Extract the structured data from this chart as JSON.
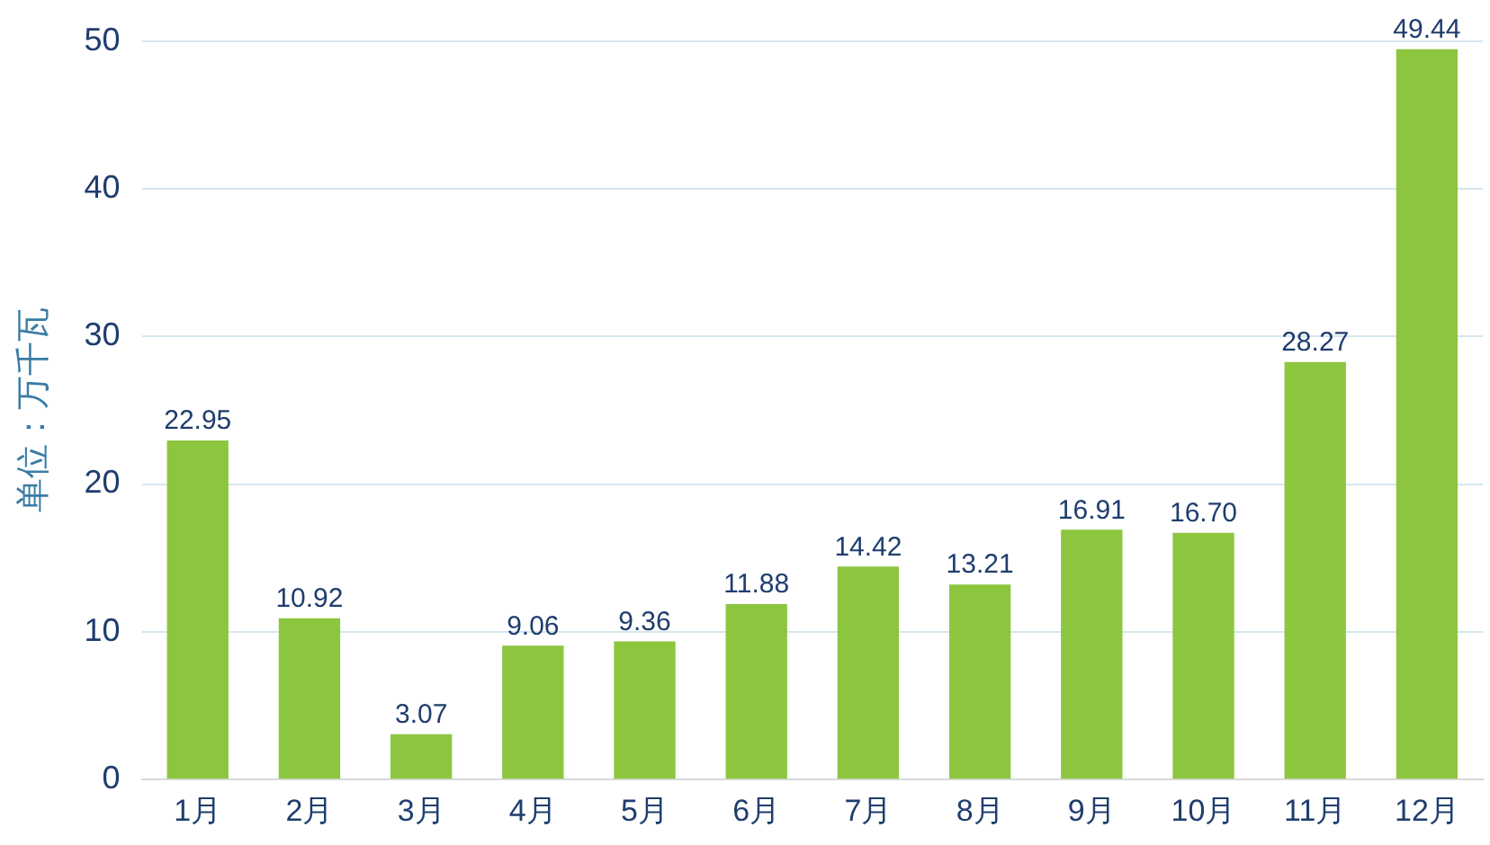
{
  "chart_data": {
    "type": "bar",
    "ylabel": "单位：万千瓦",
    "categories": [
      "1月",
      "2月",
      "3月",
      "4月",
      "5月",
      "6月",
      "7月",
      "8月",
      "9月",
      "10月",
      "11月",
      "12月"
    ],
    "values": [
      22.95,
      10.92,
      3.07,
      9.06,
      9.36,
      11.88,
      14.42,
      13.21,
      16.91,
      16.7,
      28.27,
      49.44
    ],
    "value_labels": [
      "22.95",
      "10.92",
      "3.07",
      "9.06",
      "9.36",
      "11.88",
      "14.42",
      "13.21",
      "16.91",
      "16.70",
      "28.27",
      "49.44"
    ],
    "color": "#8cc63f",
    "ylim": [
      0,
      50
    ],
    "yticks": [
      0,
      10,
      20,
      30,
      40,
      50
    ],
    "grid": "y",
    "legend": false
  }
}
